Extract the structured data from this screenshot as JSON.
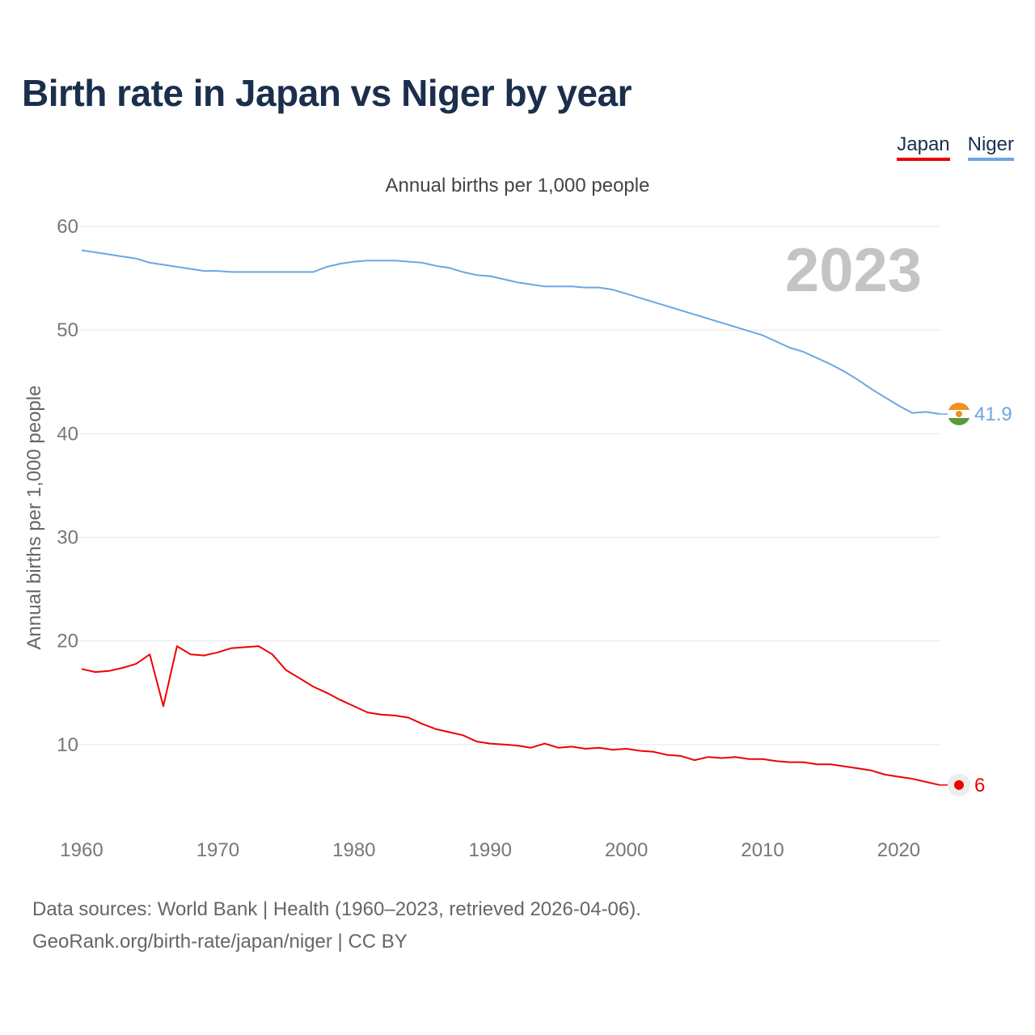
{
  "header": {
    "title": "Birth rate in Japan vs Niger by year",
    "subtitle": "Annual births per 1,000 people"
  },
  "legend": {
    "japan": "Japan",
    "niger": "Niger"
  },
  "footer": {
    "line1": "Data sources: World Bank | Health (1960–2023, retrieved 2026-04-06).",
    "line2": "GeoRank.org/birth-rate/japan/niger | CC BY"
  },
  "chart_data": {
    "type": "line",
    "title": "Birth rate in Japan vs Niger by year",
    "ylabel": "Annual births per 1,000 people",
    "xlabel": "",
    "year_label": "2023",
    "xlim": [
      1960,
      2023
    ],
    "ylim": [
      0,
      60
    ],
    "grid": true,
    "x_ticks": [
      1960,
      1970,
      1980,
      1990,
      2000,
      2010,
      2020
    ],
    "y_ticks": [
      10,
      20,
      30,
      40,
      50,
      60
    ],
    "x": [
      1960,
      1961,
      1962,
      1963,
      1964,
      1965,
      1966,
      1967,
      1968,
      1969,
      1970,
      1971,
      1972,
      1973,
      1974,
      1975,
      1976,
      1977,
      1978,
      1979,
      1980,
      1981,
      1982,
      1983,
      1984,
      1985,
      1986,
      1987,
      1988,
      1989,
      1990,
      1991,
      1992,
      1993,
      1994,
      1995,
      1996,
      1997,
      1998,
      1999,
      2000,
      2001,
      2002,
      2003,
      2004,
      2005,
      2006,
      2007,
      2008,
      2009,
      2010,
      2011,
      2012,
      2013,
      2014,
      2015,
      2016,
      2017,
      2018,
      2019,
      2020,
      2021,
      2022,
      2023
    ],
    "series": [
      {
        "name": "Japan",
        "color": "#ee0000",
        "end_label": "6",
        "values": [
          17.3,
          17.0,
          17.1,
          17.4,
          17.8,
          18.7,
          13.7,
          19.5,
          18.7,
          18.6,
          18.9,
          19.3,
          19.4,
          19.5,
          18.7,
          17.2,
          16.4,
          15.6,
          15.0,
          14.3,
          13.7,
          13.1,
          12.9,
          12.8,
          12.6,
          12.0,
          11.5,
          11.2,
          10.9,
          10.3,
          10.1,
          10.0,
          9.9,
          9.7,
          10.1,
          9.7,
          9.8,
          9.6,
          9.7,
          9.5,
          9.6,
          9.4,
          9.3,
          9.0,
          8.9,
          8.5,
          8.8,
          8.7,
          8.8,
          8.6,
          8.6,
          8.4,
          8.3,
          8.3,
          8.1,
          8.1,
          7.9,
          7.7,
          7.5,
          7.1,
          6.9,
          6.7,
          6.4,
          6.1
        ]
      },
      {
        "name": "Niger",
        "color": "#6aa7e3",
        "end_label": "41.9",
        "values": [
          57.7,
          57.5,
          57.3,
          57.1,
          56.9,
          56.5,
          56.3,
          56.1,
          55.9,
          55.7,
          55.7,
          55.6,
          55.6,
          55.6,
          55.6,
          55.6,
          55.6,
          55.6,
          56.1,
          56.4,
          56.6,
          56.7,
          56.7,
          56.7,
          56.6,
          56.5,
          56.2,
          56.0,
          55.6,
          55.3,
          55.2,
          54.9,
          54.6,
          54.4,
          54.2,
          54.2,
          54.2,
          54.1,
          54.1,
          53.9,
          53.5,
          53.1,
          52.7,
          52.3,
          51.9,
          51.5,
          51.1,
          50.7,
          50.3,
          49.9,
          49.5,
          48.9,
          48.3,
          47.9,
          47.3,
          46.7,
          46.0,
          45.2,
          44.3,
          43.5,
          42.7,
          42.0,
          42.1,
          41.9
        ]
      }
    ]
  }
}
